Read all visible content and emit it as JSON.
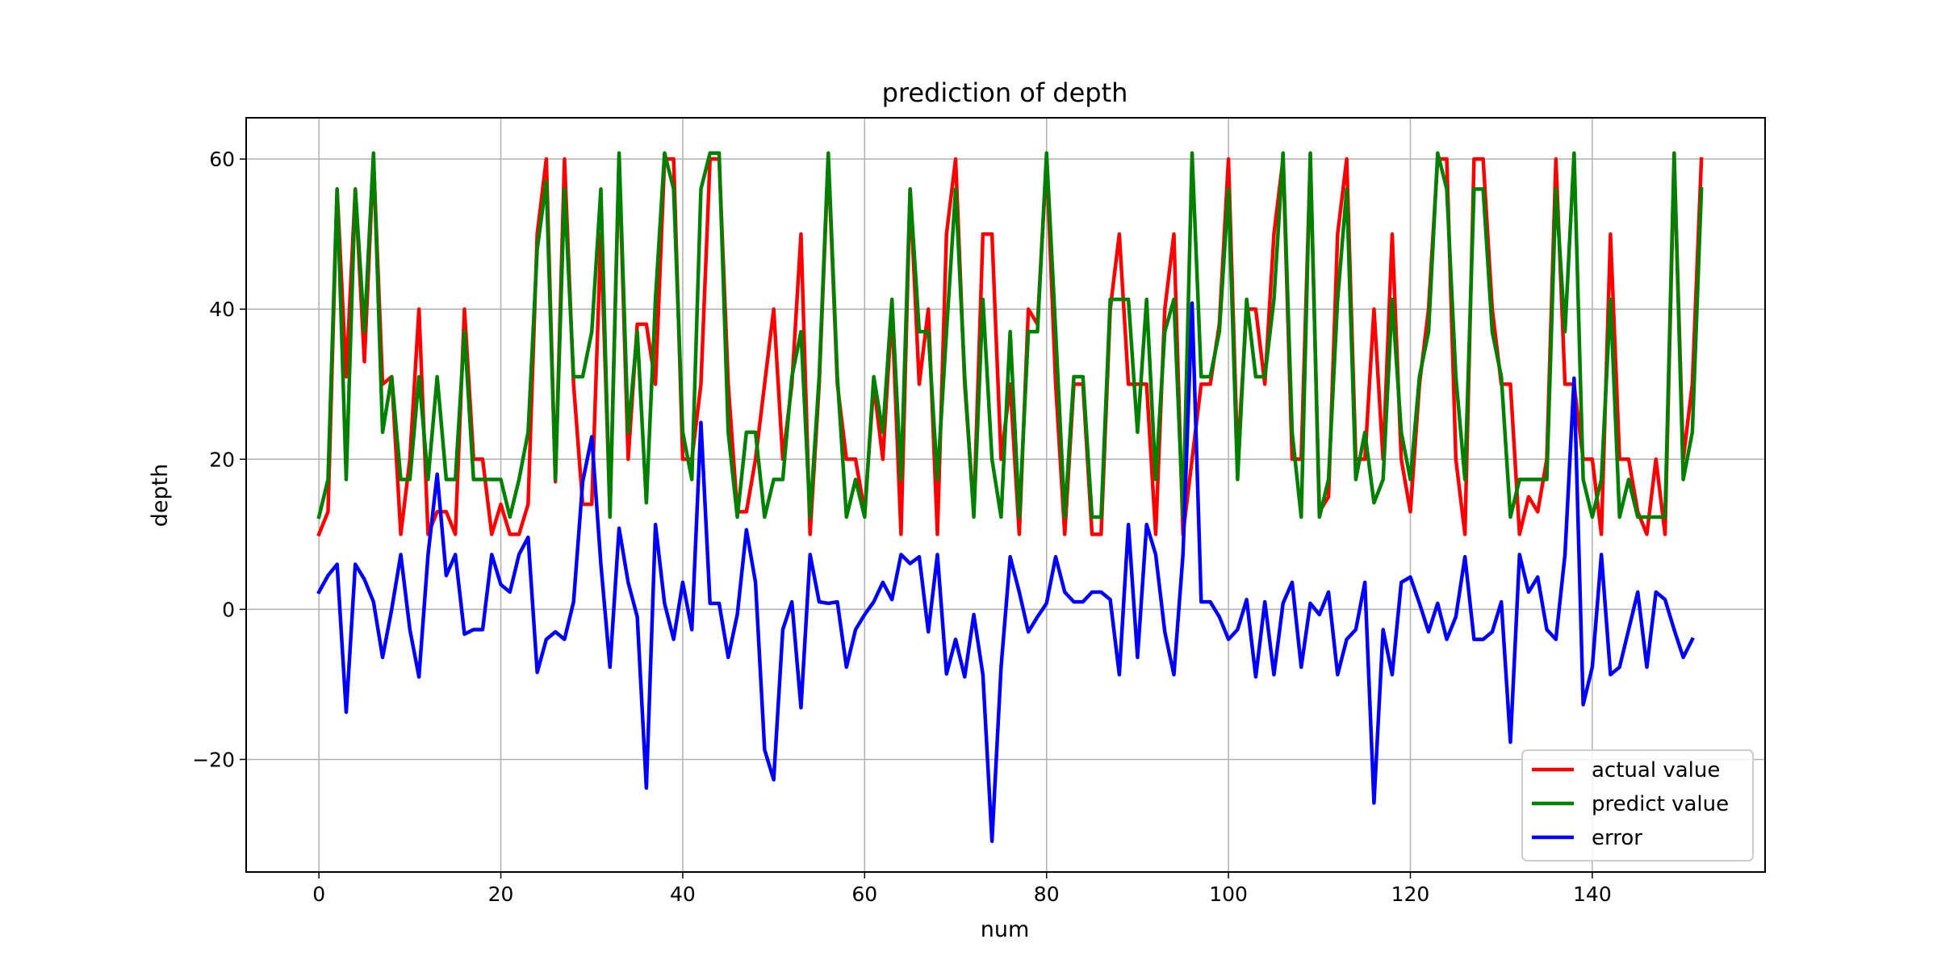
{
  "chart_data": {
    "type": "line",
    "title": "prediction of depth",
    "xlabel": "num",
    "ylabel": "depth",
    "xlim": [
      -8,
      159
    ],
    "ylim": [
      -35,
      65.5
    ],
    "xticks": [
      0,
      20,
      40,
      60,
      80,
      100,
      120,
      140
    ],
    "yticks": [
      -20,
      0,
      20,
      40,
      60
    ],
    "ytick_labels": [
      "−20",
      "0",
      "20",
      "40",
      "60"
    ],
    "grid": true,
    "legend_position": "lower-right",
    "x_start": 0,
    "x_step": 1,
    "series": [
      {
        "name": "actual value",
        "color": "#ff0000",
        "values": [
          10,
          13,
          56,
          31,
          56,
          33,
          60,
          30,
          31,
          10,
          20,
          40,
          10,
          13,
          13,
          10,
          40,
          20,
          20,
          10,
          14,
          10,
          10,
          14,
          50,
          60,
          17,
          60,
          30,
          14,
          14,
          50,
          13,
          60,
          20,
          38,
          38,
          30,
          60,
          60,
          20,
          20,
          30,
          60,
          60,
          30,
          13,
          13,
          20,
          30,
          40,
          20,
          30,
          50,
          10,
          30,
          60,
          30,
          20,
          20,
          13,
          30,
          20,
          40,
          10,
          56,
          30,
          40,
          10,
          50,
          60,
          30,
          13,
          50,
          50,
          20,
          30,
          10,
          40,
          38,
          60,
          30,
          10,
          30,
          30,
          10,
          10,
          40,
          50,
          30,
          30,
          30,
          10,
          40,
          50,
          10,
          20,
          30,
          30,
          38,
          60,
          20,
          40,
          40,
          30,
          50,
          60,
          20,
          20,
          60,
          13,
          15,
          50,
          60,
          20,
          20,
          40,
          20,
          50,
          20,
          13,
          30,
          40,
          60,
          60,
          20,
          10,
          60,
          60,
          40,
          30,
          30,
          10,
          15,
          13,
          20,
          60,
          30,
          30,
          20,
          20,
          10,
          50,
          20,
          20,
          13,
          10,
          20,
          10,
          60,
          20,
          30,
          60
        ]
      },
      {
        "name": "predict value",
        "color": "#008000",
        "values": [
          12.3,
          17.3,
          56,
          17.3,
          56,
          37,
          60.8,
          23.6,
          31,
          17.3,
          17.3,
          31,
          17.3,
          31,
          17.3,
          17.3,
          37,
          17.3,
          17.3,
          17.3,
          17.3,
          12.3,
          17.3,
          23.6,
          48,
          57,
          17.3,
          56,
          31,
          31,
          37,
          56,
          12.3,
          60.8,
          23.6,
          37,
          14.2,
          41.3,
          60.8,
          56,
          23.6,
          17.3,
          56,
          60.8,
          60.8,
          23.6,
          12.3,
          23.6,
          23.6,
          12.3,
          17.3,
          17.3,
          31,
          37,
          12.3,
          31,
          60.8,
          31,
          12.3,
          17.3,
          12.3,
          31,
          23.6,
          41.3,
          17.3,
          56,
          37,
          37,
          17.3,
          37,
          56,
          31,
          12.3,
          41.3,
          20,
          12.3,
          37,
          12.3,
          37,
          37,
          60.8,
          37,
          12.3,
          31,
          31,
          12.3,
          12.3,
          41.3,
          41.3,
          41.3,
          23.6,
          41.3,
          17.3,
          37,
          41.3,
          12.3,
          60.8,
          31,
          31,
          37,
          56,
          17.3,
          41.3,
          31,
          31,
          41.3,
          60.8,
          23.6,
          12.3,
          60.8,
          12.3,
          17.3,
          41.3,
          56,
          17.3,
          23.6,
          14.2,
          17.3,
          41.3,
          23.6,
          17.3,
          31,
          37,
          60.8,
          56,
          31,
          17.3,
          56,
          56,
          37,
          31,
          12.3,
          17.3,
          17.3,
          17.3,
          17.3,
          56,
          37,
          60.8,
          17.3,
          12.3,
          17.3,
          41.3,
          12.3,
          17.3,
          12.3,
          12.3,
          12.3,
          12.3,
          60.8,
          17.3,
          23.6,
          56
        ]
      },
      {
        "name": "error",
        "color": "#0000ff",
        "values": [
          2.3,
          4.5,
          6,
          -13.7,
          6,
          4,
          1,
          -6.4,
          0,
          7.3,
          -2.7,
          -9,
          7.3,
          18,
          4.5,
          7.3,
          -3.3,
          -2.7,
          -2.7,
          7.3,
          3.3,
          2.3,
          7.3,
          9.6,
          -8.4,
          -4,
          -3,
          -4,
          1,
          17,
          23,
          6,
          -7.7,
          10.8,
          3.6,
          -1,
          -23.8,
          11.3,
          0.8,
          -4,
          3.6,
          -2.7,
          24.9,
          0.8,
          0.8,
          -6.4,
          -0.7,
          10.6,
          3.6,
          -18.7,
          -22.7,
          -2.7,
          1,
          -13.1,
          7.3,
          1,
          0.8,
          1,
          -7.7,
          -2.7,
          -0.7,
          1,
          3.6,
          1.3,
          7.3,
          6.1,
          7,
          -3,
          7.3,
          -8.6,
          -4,
          -9,
          -0.7,
          -8.7,
          -30.9,
          -7.7,
          7,
          2.3,
          -3,
          -1,
          0.8,
          7,
          2.3,
          1,
          1,
          2.3,
          2.3,
          1.3,
          -8.7,
          11.3,
          -6.4,
          11.3,
          7.3,
          -3,
          -8.7,
          7.3,
          40.8,
          1,
          1,
          -1,
          -4,
          -2.7,
          1.3,
          -9,
          1,
          -8.7,
          0.8,
          3.6,
          -7.7,
          0.8,
          -0.7,
          2.3,
          -8.7,
          -4,
          -2.7,
          3.6,
          -25.8,
          -2.7,
          -8.7,
          3.6,
          4.3,
          0.8,
          -3,
          0.8,
          -4,
          -1,
          7,
          -4,
          -4,
          -3,
          1,
          -17.7,
          7.3,
          2.3,
          4.3,
          -2.7,
          -4,
          7.3,
          30.8,
          -12.7,
          -7.7,
          7.3,
          -8.7,
          -7.7,
          -2.7,
          2.3,
          -7.7,
          2.3,
          1.3,
          -2.7,
          -6.4,
          -4
        ]
      }
    ]
  }
}
